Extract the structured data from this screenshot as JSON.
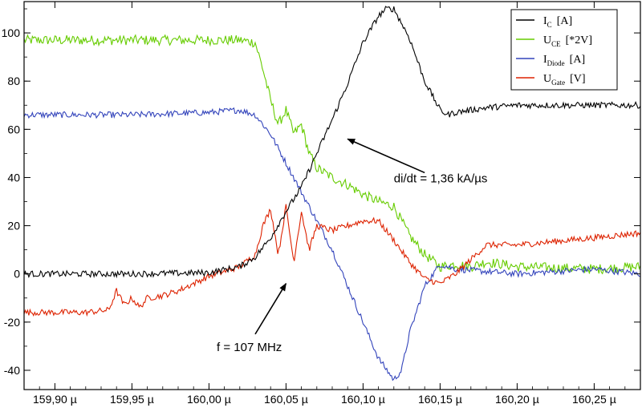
{
  "chart_data": {
    "type": "line",
    "xlim": [
      159.88,
      160.28
    ],
    "ylim": [
      -48,
      113
    ],
    "x_ticks": [
      159.9,
      159.95,
      160.0,
      160.05,
      160.1,
      160.15,
      160.2,
      160.25
    ],
    "x_tick_labels": [
      "159,90 µ",
      "159,95 µ",
      "160,00 µ",
      "160,05 µ",
      "160,10 µ",
      "160,15 µ",
      "160,20 µ",
      "160,25 µ"
    ],
    "y_ticks": [
      -40,
      -20,
      0,
      20,
      40,
      60,
      80,
      100
    ],
    "y_tick_labels": [
      "-40",
      "-20",
      "0",
      "20",
      "40",
      "60",
      "80",
      "100"
    ],
    "grid": false,
    "legend_position": "top-right",
    "series": [
      {
        "name_main": "I",
        "name_sub": "C",
        "name_unit": "[A]",
        "color": "#000000",
        "noise": 0.8,
        "x": [
          159.88,
          159.95,
          160.0,
          160.02,
          160.03,
          160.04,
          160.05,
          160.06,
          160.07,
          160.08,
          160.09,
          160.1,
          160.11,
          160.115,
          160.12,
          160.13,
          160.14,
          160.15,
          160.155,
          160.16,
          160.18,
          160.2,
          160.25,
          160.28
        ],
        "y": [
          0,
          0,
          0.5,
          3,
          7,
          15,
          26,
          36,
          50,
          64,
          79,
          96,
          107,
          110,
          110,
          98,
          80,
          68,
          66,
          67,
          69,
          70,
          70,
          70
        ]
      },
      {
        "name_main": "U",
        "name_sub": "CE",
        "name_unit": "[*2V]",
        "color": "#66cc00",
        "noise": 1.3,
        "x": [
          159.88,
          159.95,
          160.0,
          160.02,
          160.03,
          160.035,
          160.04,
          160.045,
          160.05,
          160.055,
          160.06,
          160.065,
          160.07,
          160.08,
          160.09,
          160.1,
          160.11,
          160.12,
          160.13,
          160.14,
          160.15,
          160.16,
          160.17,
          160.18,
          160.2,
          160.25,
          160.28
        ],
        "y": [
          97,
          97,
          97,
          97,
          96,
          85,
          72,
          62,
          68,
          58,
          62,
          50,
          44,
          40,
          37,
          33,
          30,
          28,
          16,
          8,
          3,
          4,
          3,
          5,
          3,
          2,
          3
        ]
      },
      {
        "name_main": "I",
        "name_sub": "Diode",
        "name_unit": "[A]",
        "color": "#3344bb",
        "noise": 0.8,
        "x": [
          159.88,
          159.95,
          160.0,
          160.02,
          160.03,
          160.04,
          160.05,
          160.06,
          160.07,
          160.08,
          160.09,
          160.1,
          160.11,
          160.12,
          160.125,
          160.13,
          160.14,
          160.15,
          160.16,
          160.18,
          160.2,
          160.25,
          160.28
        ],
        "y": [
          66,
          66,
          67,
          68,
          66,
          58,
          46,
          34,
          22,
          10,
          -5,
          -20,
          -35,
          -44,
          -40,
          -25,
          -5,
          4,
          2,
          1,
          0,
          2,
          0
        ]
      },
      {
        "name_main": "U",
        "name_sub": "Gate",
        "name_unit": "[V]",
        "color": "#dd2200",
        "noise": 0.8,
        "x": [
          159.88,
          159.92,
          159.935,
          159.94,
          159.945,
          159.95,
          159.955,
          159.96,
          159.97,
          159.98,
          159.99,
          160.0,
          160.01,
          160.02,
          160.03,
          160.035,
          160.04,
          160.045,
          160.05,
          160.055,
          160.06,
          160.065,
          160.07,
          160.08,
          160.09,
          160.1,
          160.11,
          160.12,
          160.13,
          160.14,
          160.15,
          160.16,
          160.17,
          160.18,
          160.2,
          160.25,
          160.28
        ],
        "y": [
          -16,
          -16,
          -15,
          -7,
          -13,
          -10,
          -14,
          -10,
          -9,
          -7,
          -4,
          -1,
          1,
          3,
          8,
          20,
          27,
          8,
          28,
          5,
          26,
          10,
          20,
          18,
          20,
          22,
          22,
          14,
          5,
          -2,
          -4,
          0,
          6,
          12,
          12,
          15,
          17
        ]
      }
    ],
    "annotations": [
      {
        "text": "di/dt = 1,36 kA/µs",
        "x": 160.12,
        "y": 38,
        "arrow_from": [
          160.14,
          42
        ],
        "arrow_to": [
          160.09,
          56
        ]
      },
      {
        "text": "f = 107 MHz",
        "x": 160.005,
        "y": -32,
        "arrow_from": [
          160.03,
          -25
        ],
        "arrow_to": [
          160.05,
          -4
        ]
      }
    ]
  }
}
